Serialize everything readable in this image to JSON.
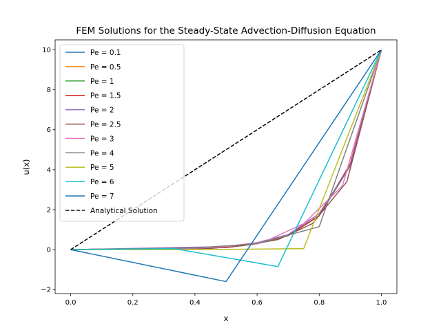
{
  "chart_data": {
    "type": "line",
    "title": "FEM Solutions for the Steady-State Advection-Diffusion Equation",
    "xlabel": "x",
    "ylabel": "u(x)",
    "xlim": [
      -0.05,
      1.05
    ],
    "ylim": [
      -2.2,
      10.5
    ],
    "xticks": [
      0.0,
      0.2,
      0.4,
      0.6,
      0.8,
      1.0
    ],
    "xtick_labels": [
      "0.0",
      "0.2",
      "0.4",
      "0.6",
      "0.8",
      "1.0"
    ],
    "yticks": [
      -2,
      0,
      2,
      4,
      6,
      8,
      10
    ],
    "ytick_labels": [
      "−2",
      "0",
      "2",
      "4",
      "6",
      "8",
      "10"
    ],
    "grid": false,
    "legend_position": "upper-left",
    "series": [
      {
        "name": "Pe = 0.1",
        "color": "#1f77b4",
        "dash": "solid",
        "x": [
          0,
          0.5,
          0.6,
          0.7,
          0.8,
          0.9,
          1.0
        ],
        "y": [
          0,
          0.1,
          0.3,
          0.7,
          1.7,
          4.2,
          10
        ]
      },
      {
        "name": "Pe = 0.5",
        "color": "#ff7f0e",
        "dash": "solid",
        "x": [
          0,
          0.5,
          0.6,
          0.7,
          0.8,
          0.9,
          1.0
        ],
        "y": [
          0,
          0.1,
          0.3,
          0.7,
          1.7,
          4.2,
          10
        ]
      },
      {
        "name": "Pe = 1",
        "color": "#2ca02c",
        "dash": "solid",
        "x": [
          0,
          0.5,
          0.6,
          0.7,
          0.8,
          0.9,
          1.0
        ],
        "y": [
          0,
          0.1,
          0.3,
          0.7,
          1.7,
          4.2,
          10
        ]
      },
      {
        "name": "Pe = 1.5",
        "color": "#d62728",
        "dash": "solid",
        "x": [
          0,
          0.5,
          0.6,
          0.7,
          0.8,
          0.9,
          1.0
        ],
        "y": [
          0,
          0.1,
          0.3,
          0.7,
          1.7,
          4.3,
          10
        ]
      },
      {
        "name": "Pe = 2",
        "color": "#9467bd",
        "dash": "solid",
        "x": [
          0,
          0.5,
          0.6,
          0.7,
          0.8,
          0.9,
          1.0
        ],
        "y": [
          0,
          0.15,
          0.35,
          0.75,
          1.8,
          4.2,
          10
        ]
      },
      {
        "name": "Pe = 2.5",
        "color": "#8c564b",
        "dash": "solid",
        "x": [
          0,
          0.444,
          0.556,
          0.667,
          0.778,
          0.889,
          1.0
        ],
        "y": [
          0,
          0.05,
          0.2,
          0.5,
          1.3,
          3.4,
          10
        ]
      },
      {
        "name": "Pe = 3",
        "color": "#e377c2",
        "dash": "solid",
        "x": [
          0,
          0.375,
          0.5,
          0.625,
          0.75,
          0.875,
          1.0
        ],
        "y": [
          0,
          0.05,
          0.15,
          0.4,
          1.3,
          3.2,
          10
        ]
      },
      {
        "name": "Pe = 4",
        "color": "#7f7f7f",
        "dash": "solid",
        "x": [
          0,
          0.4,
          0.6,
          0.8,
          1.0
        ],
        "y": [
          0,
          0.08,
          0.3,
          1.15,
          10
        ]
      },
      {
        "name": "Pe = 5",
        "color": "#bcbd22",
        "dash": "solid",
        "x": [
          0,
          0.25,
          0.5,
          0.75,
          1.0
        ],
        "y": [
          0,
          0.0,
          0.01,
          0.05,
          10
        ]
      },
      {
        "name": "Pe = 6",
        "color": "#17becf",
        "dash": "solid",
        "x": [
          0,
          0.333,
          0.667,
          1.0
        ],
        "y": [
          0,
          0.05,
          -0.85,
          10
        ]
      },
      {
        "name": "Pe = 7",
        "color": "#1f77b4",
        "dash": "solid",
        "x": [
          0,
          0.5,
          1.0
        ],
        "y": [
          0,
          -1.6,
          10
        ]
      },
      {
        "name": "Analytical Solution",
        "color": "#000000",
        "dash": "dashed",
        "x": [
          0,
          1.0
        ],
        "y": [
          0,
          10
        ]
      }
    ]
  }
}
